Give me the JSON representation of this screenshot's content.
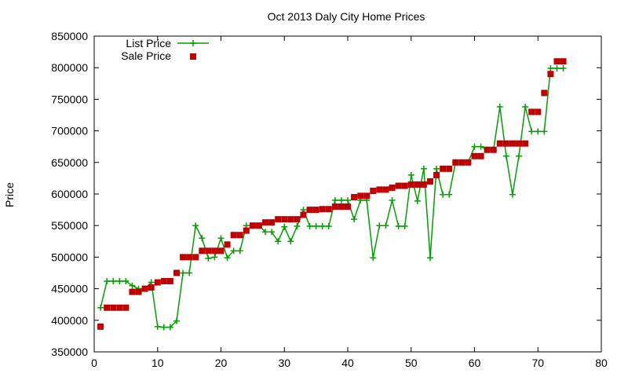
{
  "chart_data": {
    "type": "line",
    "title": "Oct 2013 Daly City Home Prices",
    "xlabel": "",
    "ylabel": "Price",
    "xlim": [
      0,
      80
    ],
    "ylim": [
      350000,
      850000
    ],
    "xticks": [
      "0",
      "10",
      "20",
      "30",
      "40",
      "50",
      "60",
      "70",
      "80"
    ],
    "yticks": [
      "350000",
      "400000",
      "450000",
      "500000",
      "550000",
      "600000",
      "650000",
      "700000",
      "750000",
      "800000",
      "850000"
    ],
    "grid": false,
    "legend_position": "top-left",
    "series": [
      {
        "name": "List Price",
        "style": "linespoints",
        "color": "#00a000",
        "x": [
          1,
          2,
          3,
          4,
          5,
          6,
          7,
          8,
          9,
          10,
          11,
          12,
          13,
          14,
          15,
          16,
          17,
          18,
          19,
          20,
          21,
          22,
          23,
          24,
          25,
          26,
          27,
          28,
          29,
          30,
          31,
          32,
          33,
          34,
          35,
          36,
          37,
          38,
          39,
          40,
          41,
          42,
          43,
          44,
          45,
          46,
          47,
          48,
          49,
          50,
          51,
          52,
          53,
          54,
          55,
          56,
          57,
          58,
          59,
          60,
          61,
          62,
          63,
          64,
          65,
          66,
          67,
          68,
          69,
          70,
          71,
          72,
          73,
          74
        ],
        "y": [
          420000,
          462000,
          462000,
          462000,
          462000,
          455000,
          450000,
          450000,
          460000,
          390000,
          389000,
          389000,
          399000,
          475000,
          475000,
          550000,
          530000,
          498000,
          500000,
          530000,
          499000,
          510000,
          510000,
          550000,
          550000,
          550000,
          540000,
          540000,
          525000,
          548000,
          525000,
          549000,
          575000,
          549000,
          549000,
          549000,
          549000,
          590000,
          590000,
          590000,
          560000,
          590000,
          590000,
          499000,
          550000,
          550000,
          590000,
          549000,
          549000,
          630000,
          589000,
          640000,
          499000,
          640000,
          599000,
          599000,
          650000,
          650000,
          650000,
          675000,
          675000,
          670000,
          670000,
          738000,
          660000,
          599000,
          660000,
          738000,
          699000,
          699000,
          699000,
          799000,
          799000,
          799000
        ]
      },
      {
        "name": "Sale Price",
        "style": "points",
        "color": "#c00000",
        "x": [
          1,
          2,
          3,
          4,
          5,
          6,
          7,
          8,
          9,
          10,
          11,
          12,
          13,
          14,
          15,
          16,
          17,
          18,
          19,
          20,
          21,
          22,
          23,
          24,
          25,
          26,
          27,
          28,
          29,
          30,
          31,
          32,
          33,
          34,
          35,
          36,
          37,
          38,
          39,
          40,
          41,
          42,
          43,
          44,
          45,
          46,
          47,
          48,
          49,
          50,
          51,
          52,
          53,
          54,
          55,
          56,
          57,
          58,
          59,
          60,
          61,
          62,
          63,
          64,
          65,
          66,
          67,
          68,
          69,
          70,
          71,
          72,
          73,
          74
        ],
        "y": [
          390000,
          420000,
          420000,
          420000,
          420000,
          445000,
          445000,
          450000,
          452000,
          460000,
          462000,
          462000,
          475000,
          500000,
          500000,
          500000,
          510000,
          510000,
          510000,
          510000,
          520000,
          535000,
          535000,
          542000,
          550000,
          550000,
          555000,
          555000,
          560000,
          560000,
          560000,
          560000,
          567000,
          575000,
          575000,
          576000,
          576000,
          580000,
          580000,
          580000,
          595000,
          597000,
          597000,
          605000,
          607000,
          607000,
          610000,
          613000,
          613000,
          615000,
          615000,
          615000,
          620000,
          630000,
          640000,
          640000,
          650000,
          650000,
          650000,
          660000,
          660000,
          670000,
          670000,
          680000,
          680000,
          680000,
          680000,
          680000,
          730000,
          730000,
          760000,
          790000,
          810000,
          810000
        ]
      }
    ]
  }
}
